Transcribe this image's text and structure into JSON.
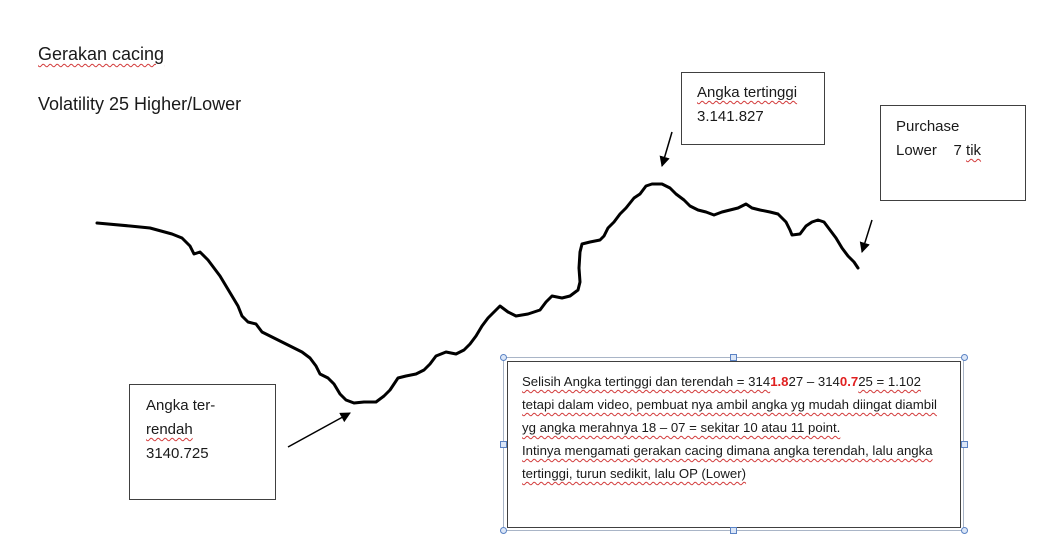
{
  "titles": {
    "line1": "Gerakan cacing",
    "line2": "Volatility 25 Higher/Lower"
  },
  "box_high": {
    "line1": "Angka tertinggi",
    "line2": "3.141.827"
  },
  "box_purchase": {
    "line1": "Purchase",
    "line2_prefix": "Lower    7 ",
    "line2_unit": "tik"
  },
  "box_low": {
    "line1": "Angka ter-",
    "line2": "rendah",
    "line3": "3140.725"
  },
  "note": {
    "p1_a": "Selisih Angka tertinggi dan terendah = 314",
    "p1_red1": "1.8",
    "p1_b": "27 – 314",
    "p1_red2": "0.7",
    "p1_c": "25 = 1.102 tetapi dalam video, pembuat  nya ambil angka yg mudah diingat diambil yg angka merahnya 18 – 07 = sekitar 10 atau 11 point.",
    "p2": "Intinya mengamati gerakan cacing dimana angka terendah, lalu angka tertinggi, turun sedikit, lalu OP (Lower)"
  },
  "colors": {
    "line": "#000000",
    "highlight": "#e02020",
    "spellcheck": "#d23a3a",
    "selection_handle": "#5b83c4"
  }
}
